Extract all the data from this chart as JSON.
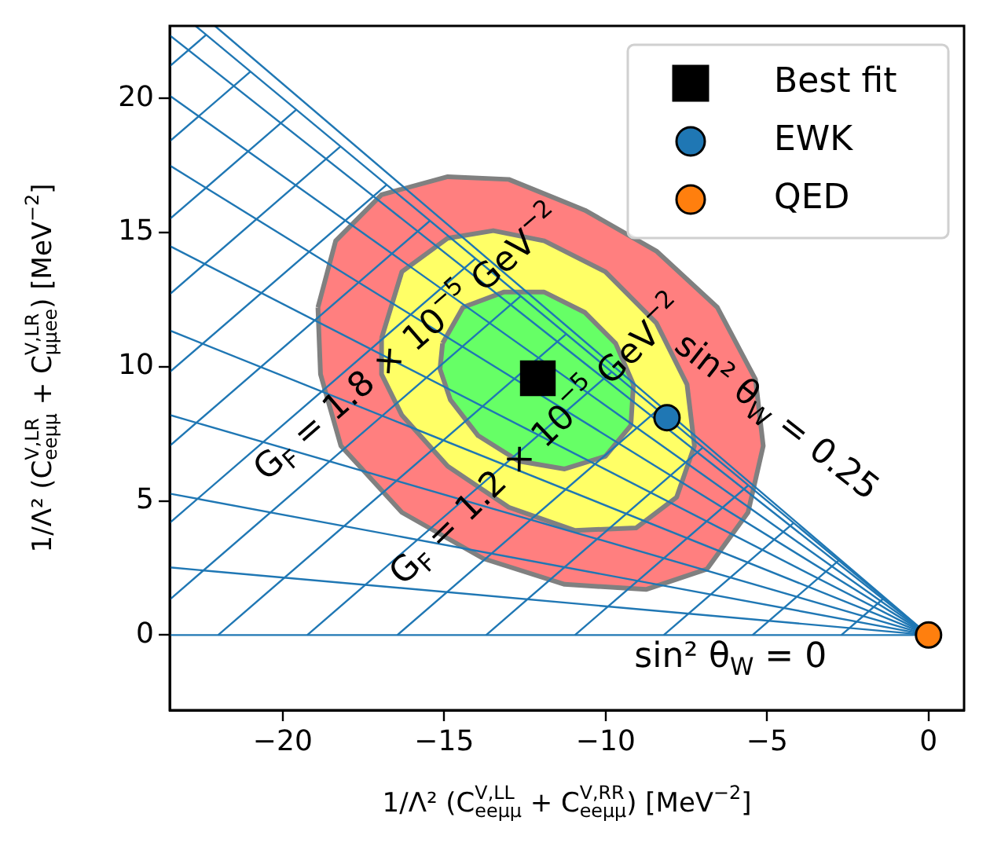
{
  "chart_data": {
    "type": "scatter",
    "xlabel": "1/Λ² (C$^{V,LL}$$_{eeμμ}$ + C$^{V,RR}$$_{eeμμ}$) [MeV$^{−2}$]",
    "ylabel": "1/Λ² (C$^{V,LR}$$_{eeμμ}$ + C$^{V,LR}$$_{μμee}$) [MeV$^{−2}$]",
    "xlim": [
      -23.5,
      1.1
    ],
    "ylim": [
      -2.8,
      22.7
    ],
    "xticks": [
      {
        "value": -20,
        "label": "−20"
      },
      {
        "value": -15,
        "label": "−15"
      },
      {
        "value": -10,
        "label": "−10"
      },
      {
        "value": -5,
        "label": "−5"
      },
      0
    ],
    "yticks": [
      0,
      5,
      10,
      15,
      20
    ],
    "grid": false,
    "legend": "top right",
    "annotations": [
      "G$_{F}$ = 1.8 × 10$^{−5}$ GeV$^{−2}$",
      "G$_{F}$ = 1.2 × 10$^{−5}$ GeV$^{−2}$",
      "sin² θ$_{W}$ = 0.25",
      "sin² θ$_{W}$ = 0"
    ],
    "series": [
      {
        "type": "area",
        "color": "#ff7f7f",
        "x": [
          -18.91,
          -18.36,
          -16.94,
          -14.89,
          -13.0,
          -10.64,
          -8.43,
          -6.54,
          -5.36,
          -5.12,
          -5.59,
          -6.86,
          -8.75,
          -11.27,
          -13.79,
          -16.31,
          -18.2,
          -18.83
        ],
        "values": [
          12.21,
          14.69,
          16.41,
          17.08,
          16.98,
          15.83,
          14.31,
          12.21,
          9.53,
          7.05,
          4.57,
          2.46,
          1.7,
          1.89,
          2.85,
          4.57,
          7.05,
          9.72
        ]
      },
      {
        "type": "area",
        "color": "#ffff66",
        "x": [
          -16.94,
          -16.31,
          -14.89,
          -13.48,
          -11.9,
          -10.01,
          -8.43,
          -7.48,
          -7.25,
          -7.8,
          -9.06,
          -10.96,
          -13.0,
          -14.89,
          -16.31,
          -16.94
        ],
        "values": [
          11.06,
          13.54,
          14.79,
          15.07,
          14.69,
          13.54,
          11.63,
          9.34,
          7.05,
          5.14,
          3.99,
          3.9,
          4.76,
          6.29,
          8.19,
          9.72
        ]
      },
      {
        "type": "area",
        "color": "#66ff66",
        "x": [
          -15.05,
          -14.42,
          -13.16,
          -11.9,
          -10.64,
          -9.69,
          -9.14,
          -9.22,
          -10.01,
          -11.27,
          -12.69,
          -13.95,
          -14.81,
          -15.13
        ],
        "values": [
          10.87,
          12.21,
          12.78,
          12.78,
          12.02,
          10.87,
          9.34,
          7.81,
          6.66,
          6.19,
          6.48,
          7.43,
          8.77,
          9.91
        ]
      },
      {
        "type": "line",
        "color": "#1f77b4",
        "x": [
          0,
          -23.5
        ],
        "values": [
          0,
          0
        ]
      },
      {
        "type": "line",
        "color": "#1f77b4",
        "x": [
          0,
          -23.5
        ],
        "values": [
          0,
          2.52
        ]
      },
      {
        "type": "line",
        "color": "#1f77b4",
        "x": [
          0,
          -23.5
        ],
        "values": [
          0,
          5.27
        ]
      },
      {
        "type": "line",
        "color": "#1f77b4",
        "x": [
          0,
          -23.5
        ],
        "values": [
          0,
          8.2
        ]
      },
      {
        "type": "line",
        "color": "#1f77b4",
        "x": [
          0,
          -23.5
        ],
        "values": [
          0,
          11.35
        ]
      },
      {
        "type": "line",
        "color": "#1f77b4",
        "x": [
          0,
          -23.5
        ],
        "values": [
          0,
          14.5
        ]
      },
      {
        "type": "line",
        "color": "#1f77b4",
        "x": [
          0,
          -23.5
        ],
        "values": [
          0,
          17.5
        ]
      },
      {
        "type": "line",
        "color": "#1f77b4",
        "x": [
          0,
          -23.5
        ],
        "values": [
          0,
          20.1
        ]
      },
      {
        "type": "line",
        "color": "#1f77b4",
        "x": [
          0,
          -23.5
        ],
        "values": [
          0,
          22.35
        ]
      },
      {
        "type": "line",
        "color": "#1f77b4",
        "x": [
          0,
          -22.1
        ],
        "values": [
          0,
          22.7
        ]
      },
      {
        "type": "line",
        "color": "#1f77b4",
        "x": [
          0,
          -22.7
        ],
        "values": [
          0,
          22.7
        ]
      },
      {
        "type": "line",
        "color": "#1f77b4",
        "x": [
          -2.7,
          -1.38
        ],
        "values": [
          0,
          1.38
        ]
      },
      {
        "type": "line",
        "color": "#1f77b4",
        "x": [
          -5.45,
          -2.78
        ],
        "values": [
          0,
          2.78
        ]
      },
      {
        "type": "line",
        "color": "#1f77b4",
        "x": [
          -8.2,
          -4.18
        ],
        "values": [
          0,
          4.18
        ]
      },
      {
        "type": "line",
        "color": "#1f77b4",
        "x": [
          -10.95,
          -5.58
        ],
        "values": [
          0,
          5.58
        ]
      },
      {
        "type": "line",
        "color": "#1f77b4",
        "x": [
          -13.7,
          -6.99
        ],
        "values": [
          0,
          6.99
        ]
      },
      {
        "type": "line",
        "color": "#1f77b4",
        "x": [
          -16.45,
          -8.39
        ],
        "values": [
          0,
          8.39
        ]
      },
      {
        "type": "line",
        "color": "#1f77b4",
        "x": [
          -19.24,
          -9.81
        ],
        "values": [
          0,
          9.81
        ]
      },
      {
        "type": "line",
        "color": "#1f77b4",
        "x": [
          -22.0,
          -11.22
        ],
        "values": [
          0,
          11.22
        ]
      },
      {
        "type": "line",
        "color": "#1f77b4",
        "x": [
          -23.5,
          -12.63
        ],
        "values": [
          1.32,
          12.63
        ]
      },
      {
        "type": "line",
        "color": "#1f77b4",
        "x": [
          -23.5,
          -14.03
        ],
        "values": [
          4.18,
          14.03
        ]
      },
      {
        "type": "line",
        "color": "#1f77b4",
        "x": [
          -23.5,
          -15.44
        ],
        "values": [
          7.05,
          15.44
        ]
      },
      {
        "type": "line",
        "color": "#1f77b4",
        "x": [
          -23.5,
          -16.78
        ],
        "values": [
          9.8,
          16.78
        ]
      },
      {
        "type": "line",
        "color": "#1f77b4",
        "x": [
          -23.5,
          -18.21
        ],
        "values": [
          12.7,
          18.21
        ]
      },
      {
        "type": "line",
        "color": "#1f77b4",
        "x": [
          -23.5,
          -19.58
        ],
        "values": [
          15.5,
          19.58
        ]
      },
      {
        "type": "line",
        "color": "#1f77b4",
        "x": [
          -23.5,
          -21.0
        ],
        "values": [
          18.4,
          21.0
        ]
      },
      {
        "type": "line",
        "color": "#1f77b4",
        "x": [
          -23.5,
          -22.37
        ],
        "values": [
          21.2,
          22.37
        ]
      },
      {
        "name": "Best fit",
        "marker": "square",
        "color": "#000000",
        "x": [
          -12.1
        ],
        "values": [
          9.57
        ]
      },
      {
        "name": "EWK",
        "marker": "circle",
        "color": "#1f77b4",
        "x": [
          -8.1
        ],
        "values": [
          8.1
        ]
      },
      {
        "name": "QED",
        "marker": "circle",
        "color": "#ff7f0e",
        "x": [
          0
        ],
        "values": [
          0
        ]
      }
    ]
  }
}
